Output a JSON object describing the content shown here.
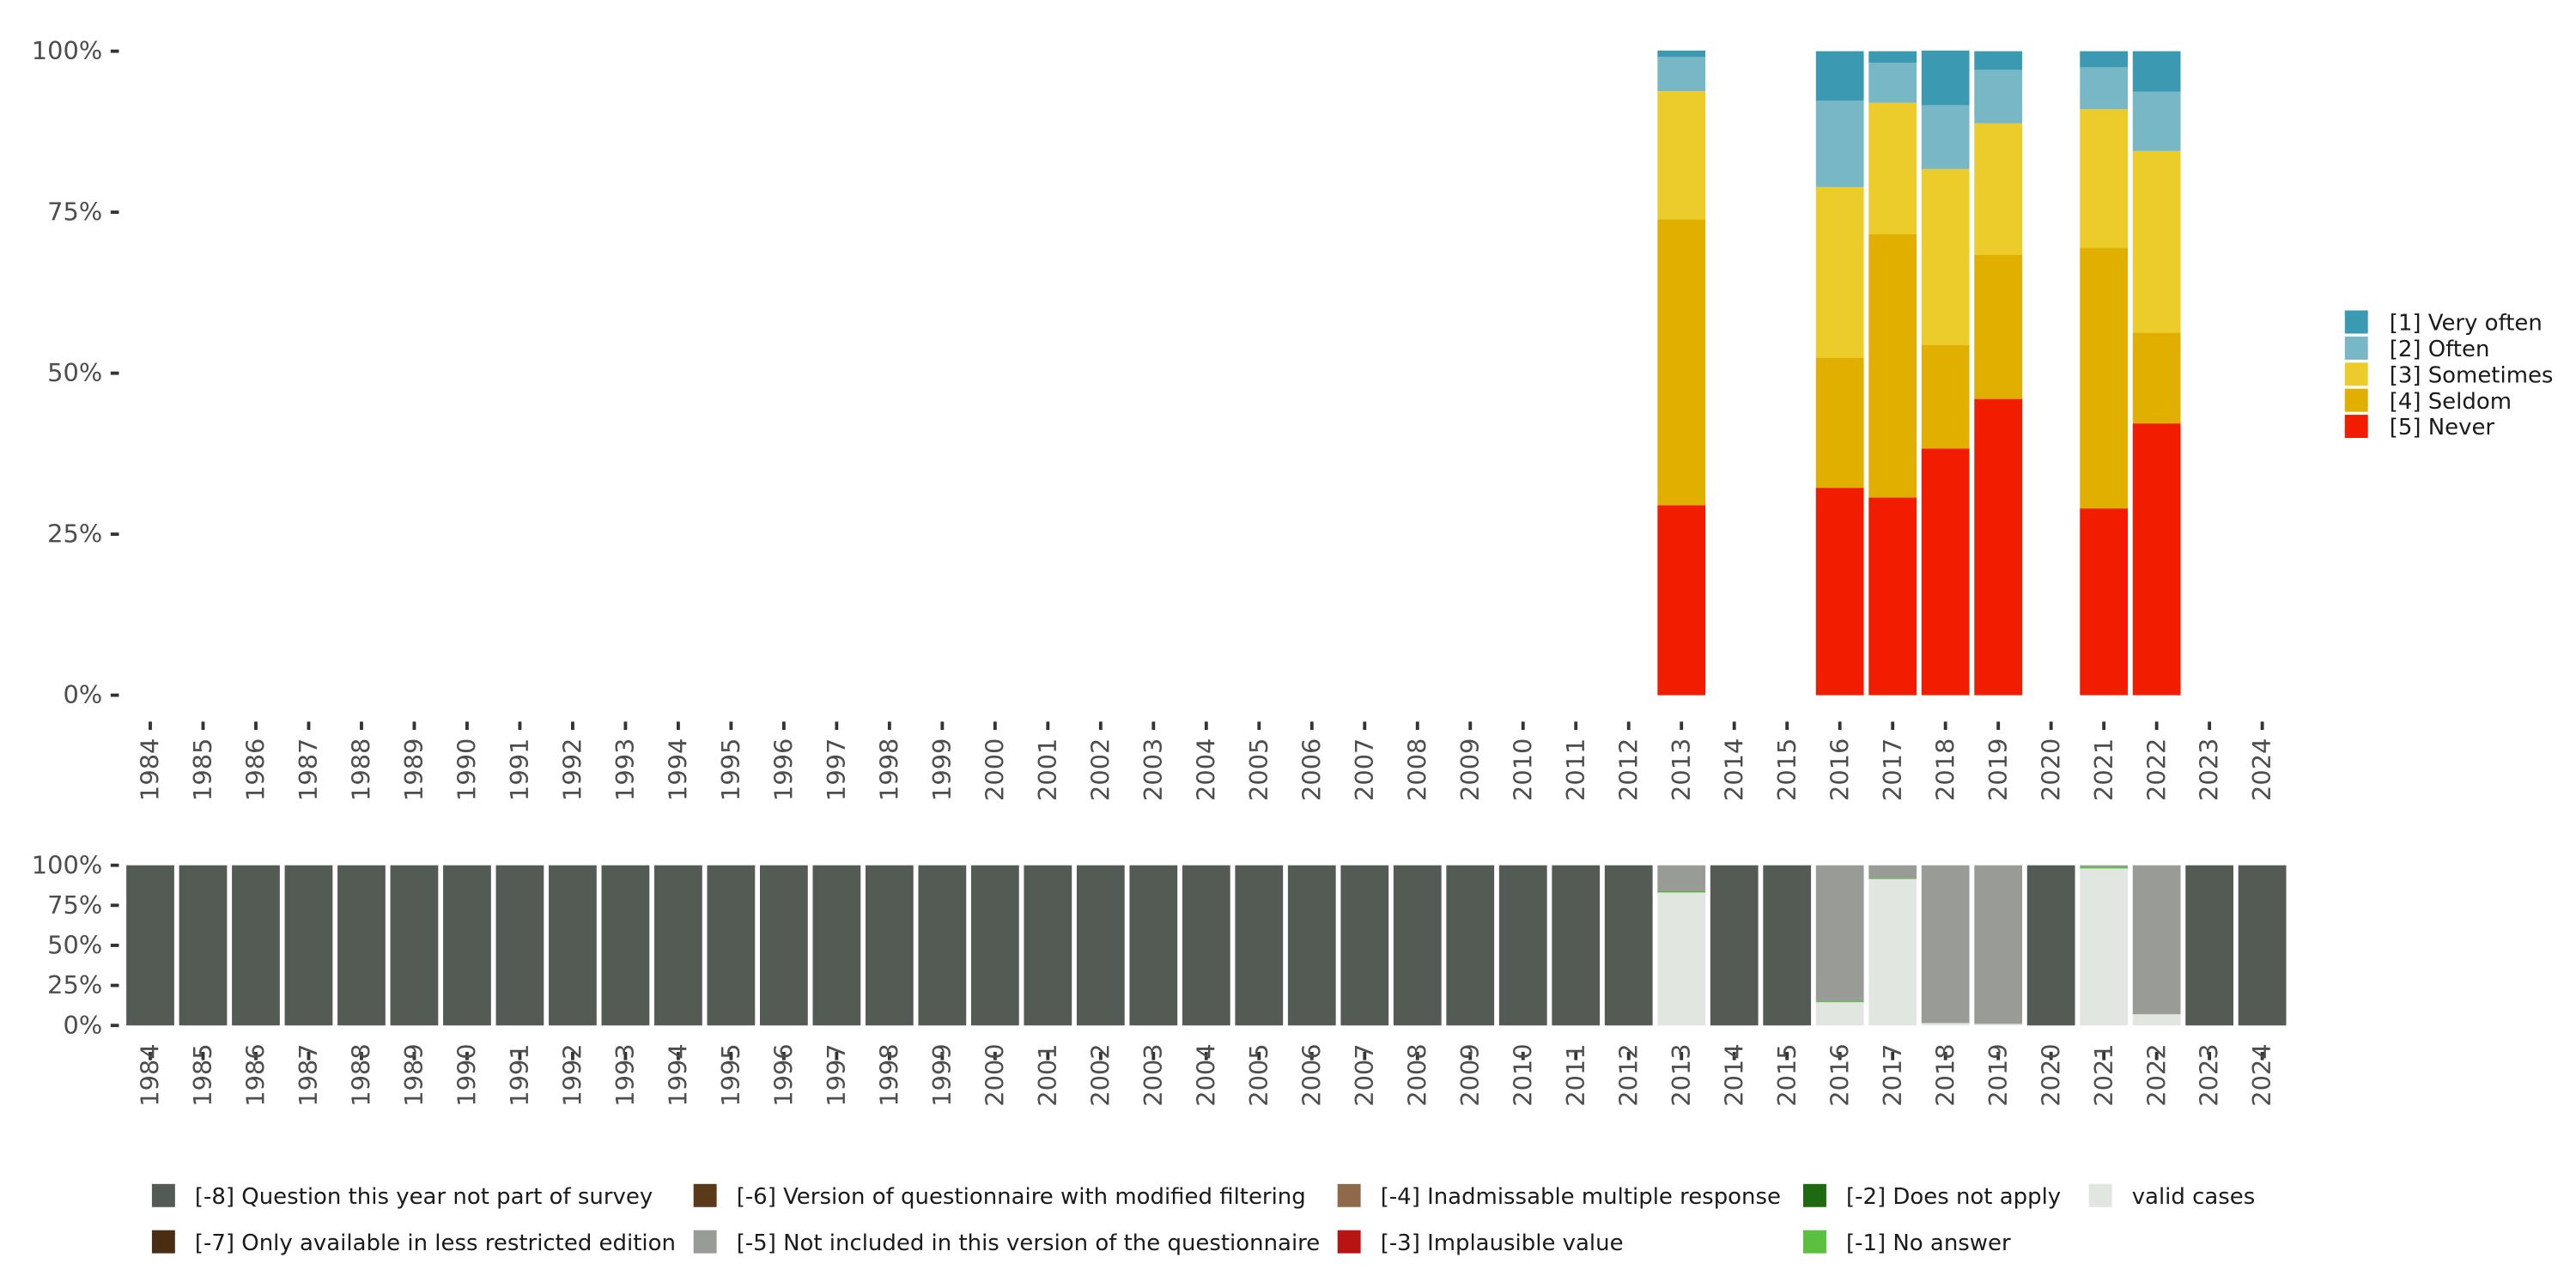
{
  "chart_data": [
    {
      "type": "bar",
      "stacked": true,
      "title": "",
      "xlabel": "",
      "ylabel": "",
      "ylim": [
        0,
        100
      ],
      "yticks": [
        "0%",
        "25%",
        "50%",
        "75%",
        "100%"
      ],
      "categories": [
        "1984",
        "1985",
        "1986",
        "1987",
        "1988",
        "1989",
        "1990",
        "1991",
        "1992",
        "1993",
        "1994",
        "1995",
        "1996",
        "1997",
        "1998",
        "1999",
        "2000",
        "2001",
        "2002",
        "2003",
        "2004",
        "2005",
        "2006",
        "2007",
        "2008",
        "2009",
        "2010",
        "2011",
        "2012",
        "2013",
        "2014",
        "2015",
        "2016",
        "2017",
        "2018",
        "2019",
        "2020",
        "2021",
        "2022",
        "2023",
        "2024"
      ],
      "legend_position": "right",
      "series": [
        {
          "name": "[5] Never",
          "color": "#f21d00",
          "values": {
            "2013": 29.5,
            "2016": 32.2,
            "2017": 30.7,
            "2018": 38.3,
            "2019": 46.0,
            "2021": 29.0,
            "2022": 42.2
          }
        },
        {
          "name": "[4] Seldom",
          "color": "#e0af00",
          "values": {
            "2013": 44.4,
            "2016": 20.2,
            "2017": 40.9,
            "2018": 16.1,
            "2019": 22.4,
            "2021": 40.5,
            "2022": 14.1
          }
        },
        {
          "name": "[3] Sometimes",
          "color": "#ebcc2a",
          "values": {
            "2013": 19.9,
            "2016": 26.5,
            "2017": 20.4,
            "2018": 27.3,
            "2019": 20.4,
            "2021": 21.5,
            "2022": 28.2
          }
        },
        {
          "name": "[2] Often",
          "color": "#78b7c5",
          "values": {
            "2013": 5.3,
            "2016": 13.4,
            "2017": 6.2,
            "2018": 9.9,
            "2019": 8.3,
            "2021": 6.5,
            "2022": 9.2
          }
        },
        {
          "name": "[1] Very often",
          "color": "#3b9ab2",
          "values": {
            "2013": 1.0,
            "2016": 7.7,
            "2017": 1.8,
            "2018": 8.5,
            "2019": 2.9,
            "2021": 2.5,
            "2022": 6.3
          }
        }
      ]
    },
    {
      "type": "bar",
      "stacked": true,
      "ylim": [
        0,
        100
      ],
      "yticks": [
        "0%",
        "25%",
        "50%",
        "75%",
        "100%"
      ],
      "legend_position": "bottom",
      "series": [
        {
          "name": "valid cases",
          "color": "#e1e6e1",
          "values": {
            "2013": 83.0,
            "2016": 14.5,
            "2017": 91.4,
            "2018": 1.5,
            "2019": 1.0,
            "2021": 98.0,
            "2022": 7.0
          }
        },
        {
          "name": "[-1] No answer",
          "color": "#5bbf3f",
          "values": {
            "2013": 0.6,
            "2016": 0.6,
            "2017": 0.4,
            "2021": 1.0
          }
        },
        {
          "name": "[-2] Does not apply",
          "color": "#1e6a10",
          "values": {
            "2013": 0.3
          }
        },
        {
          "name": "[-3] Implausible value",
          "color": "#b81414",
          "values": {}
        },
        {
          "name": "[-4] Inadmissable multiple response",
          "color": "#8f6a4a",
          "values": {}
        },
        {
          "name": "[-5] Not included in this version of the questionnaire",
          "color": "#999c96",
          "values": {
            "2013": 16.1,
            "2016": 84.9,
            "2017": 8.2,
            "2018": 98.5,
            "2019": 99.0,
            "2021": 1.0,
            "2022": 93.0
          }
        },
        {
          "name": "[-6] Version of questionnaire with modified filtering",
          "color": "#5a3a18",
          "values": {}
        },
        {
          "name": "[-7] Only available in less restricted edition",
          "color": "#4a2e14",
          "values": {}
        },
        {
          "name": "[-8] Question this year not part of survey",
          "color": "#535b54",
          "values": {
            "1984": 100,
            "1985": 100,
            "1986": 100,
            "1987": 100,
            "1988": 100,
            "1989": 100,
            "1990": 100,
            "1991": 100,
            "1992": 100,
            "1993": 100,
            "1994": 100,
            "1995": 100,
            "1996": 100,
            "1997": 100,
            "1998": 100,
            "1999": 100,
            "2000": 100,
            "2001": 100,
            "2002": 100,
            "2003": 100,
            "2004": 100,
            "2005": 100,
            "2006": 100,
            "2007": 100,
            "2008": 100,
            "2009": 100,
            "2010": 100,
            "2011": 100,
            "2012": 100,
            "2014": 100,
            "2015": 100,
            "2020": 100,
            "2023": 100,
            "2024": 100
          }
        }
      ],
      "legend_order": [
        "[-8] Question this year not part of survey",
        "[-7] Only available in less restricted edition",
        "[-6] Version of questionnaire with modified filtering",
        "[-5] Not included in this version of the questionnaire",
        "[-4] Inadmissable multiple response",
        "[-3] Implausible value",
        "[-2] Does not apply",
        "[-1] No answer",
        "valid cases"
      ]
    }
  ]
}
